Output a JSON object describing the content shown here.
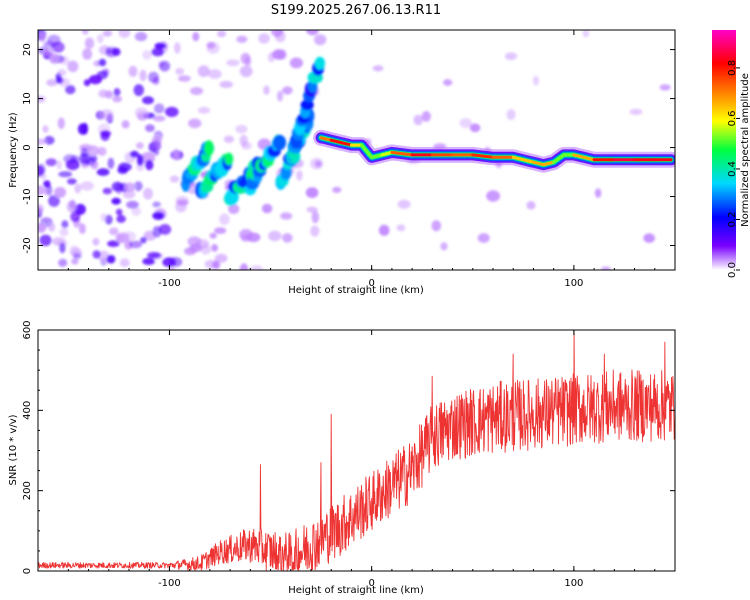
{
  "title": "S199.2025.267.06.13.R11",
  "chart_data": [
    {
      "type": "heatmap",
      "name": "spectrogram",
      "xlabel": "Height of straight line (km)",
      "ylabel": "Frequency (Hz)",
      "xlim": [
        -165,
        150
      ],
      "ylim": [
        -25,
        24
      ],
      "xticks": [
        -100,
        0,
        100
      ],
      "yticks": [
        -20,
        -10,
        0,
        10,
        20
      ],
      "colorbar": {
        "label": "Normalized spectral amplitude",
        "ticks": [
          0.0,
          0.2,
          0.4,
          0.6,
          0.8
        ],
        "range": [
          0,
          0.95
        ],
        "colors": [
          "#ffffff",
          "#7a00ff",
          "#0000ff",
          "#00d8ff",
          "#00ff40",
          "#ffff00",
          "#ff8000",
          "#ff0000",
          "#ff00c8"
        ]
      },
      "ridge": {
        "x": [
          -25,
          -20,
          -15,
          -10,
          -5,
          0,
          5,
          10,
          20,
          30,
          40,
          50,
          60,
          70,
          80,
          85,
          90,
          95,
          100,
          110,
          120,
          130,
          140,
          148
        ],
        "freq": [
          2.0,
          1.5,
          1.0,
          0.5,
          0.5,
          -2.0,
          -1.5,
          -1.0,
          -1.5,
          -1.5,
          -1.5,
          -1.5,
          -2.0,
          -2.0,
          -3.0,
          -3.5,
          -3.0,
          -1.5,
          -1.5,
          -2.5,
          -2.5,
          -2.5,
          -2.5,
          -2.5
        ],
        "amplitude": [
          0.7,
          0.8,
          0.9,
          0.8,
          0.5,
          0.6,
          0.5,
          0.7,
          0.85,
          0.9,
          0.7,
          0.85,
          0.8,
          0.75,
          0.6,
          0.8,
          0.6,
          0.5,
          0.6,
          0.8,
          0.9,
          0.9,
          0.85,
          0.9
        ]
      },
      "streaks": [
        {
          "x": [
            -92,
            -80
          ],
          "freq": [
            -7,
            0
          ],
          "amplitude": 0.35
        },
        {
          "x": [
            -85,
            -70
          ],
          "freq": [
            -9,
            -2
          ],
          "amplitude": 0.35
        },
        {
          "x": [
            -70,
            -55
          ],
          "freq": [
            -10,
            -3
          ],
          "amplitude": 0.35
        },
        {
          "x": [
            -60,
            -45
          ],
          "freq": [
            -8,
            2
          ],
          "amplitude": 0.35
        },
        {
          "x": [
            -45,
            -30
          ],
          "freq": [
            -7,
            7
          ],
          "amplitude": 0.3
        },
        {
          "x": [
            -40,
            -25
          ],
          "freq": [
            -2,
            18
          ],
          "amplitude": 0.3
        }
      ]
    },
    {
      "type": "line",
      "name": "snr",
      "xlabel": "Height of straight line (km)",
      "ylabel": "SNR (10 * v/v)",
      "xlim": [
        -165,
        150
      ],
      "ylim": [
        0,
        600
      ],
      "xticks": [
        -100,
        0,
        100
      ],
      "yticks": [
        0,
        200,
        400,
        600
      ],
      "color": "#ee3333",
      "trend": {
        "x": [
          -165,
          -100,
          -85,
          -75,
          -60,
          -40,
          -30,
          -15,
          0,
          10,
          20,
          25,
          30,
          40,
          60,
          80,
          100,
          120,
          150
        ],
        "y": [
          15,
          15,
          20,
          50,
          70,
          40,
          70,
          120,
          180,
          220,
          260,
          300,
          340,
          370,
          390,
          400,
          410,
          420,
          420
        ]
      },
      "spread": {
        "x": [
          -165,
          -100,
          -85,
          -60,
          -30,
          -15,
          0,
          30,
          60,
          100,
          150
        ],
        "y": [
          15,
          15,
          40,
          90,
          140,
          150,
          150,
          170,
          180,
          180,
          180
        ]
      },
      "peaks": [
        {
          "x": -55,
          "y": 265
        },
        {
          "x": -25,
          "y": 270
        },
        {
          "x": -20,
          "y": 390
        },
        {
          "x": 30,
          "y": 485
        },
        {
          "x": 70,
          "y": 540
        },
        {
          "x": 100,
          "y": 600
        },
        {
          "x": 115,
          "y": 540
        },
        {
          "x": 145,
          "y": 570
        }
      ]
    }
  ]
}
